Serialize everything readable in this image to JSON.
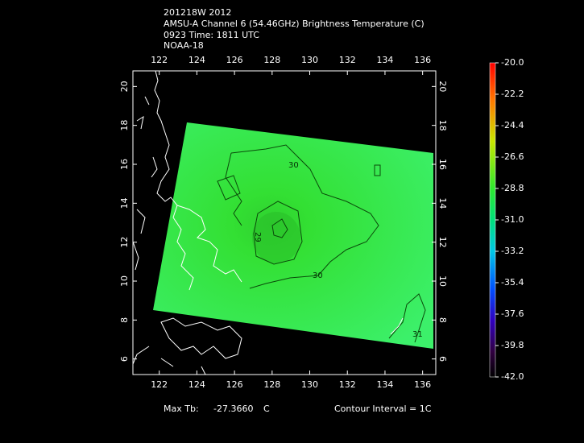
{
  "header": {
    "lines": [
      "201218W 2012",
      "AMSU-A Channel 6 (54.46GHz) Brightness Temperature (C)",
      "0923 Time: 1811 UTC",
      "NOAA-18"
    ]
  },
  "map": {
    "xlim": [
      120.6,
      136.7
    ],
    "ylim": [
      5.2,
      20.8
    ],
    "xticks": [
      122,
      124,
      126,
      128,
      130,
      132,
      134,
      136
    ],
    "yticks": [
      6,
      8,
      10,
      12,
      14,
      16,
      18,
      20
    ],
    "contour_labels": [
      "30",
      "29",
      "30",
      "31"
    ]
  },
  "colorbar": {
    "ticks": [
      {
        "value": -20.0,
        "label": "-20.0"
      },
      {
        "value": -22.2,
        "label": "-22.2"
      },
      {
        "value": -24.4,
        "label": "-24.4"
      },
      {
        "value": -26.6,
        "label": "-26.6"
      },
      {
        "value": -28.8,
        "label": "-28.8"
      },
      {
        "value": -31.0,
        "label": "-31.0"
      },
      {
        "value": -33.2,
        "label": "-33.2"
      },
      {
        "value": -35.4,
        "label": "-35.4"
      },
      {
        "value": -37.6,
        "label": "-37.6"
      },
      {
        "value": -39.8,
        "label": "-39.8"
      },
      {
        "value": -42.0,
        "label": "-42.0"
      }
    ],
    "lim": [
      -42.0,
      -20.0
    ]
  },
  "footer": {
    "max_tb_label": "Max Tb:",
    "max_tb_value": "-27.3660",
    "max_tb_unit": "C",
    "contour_interval": "Contour Interval = 1C"
  }
}
